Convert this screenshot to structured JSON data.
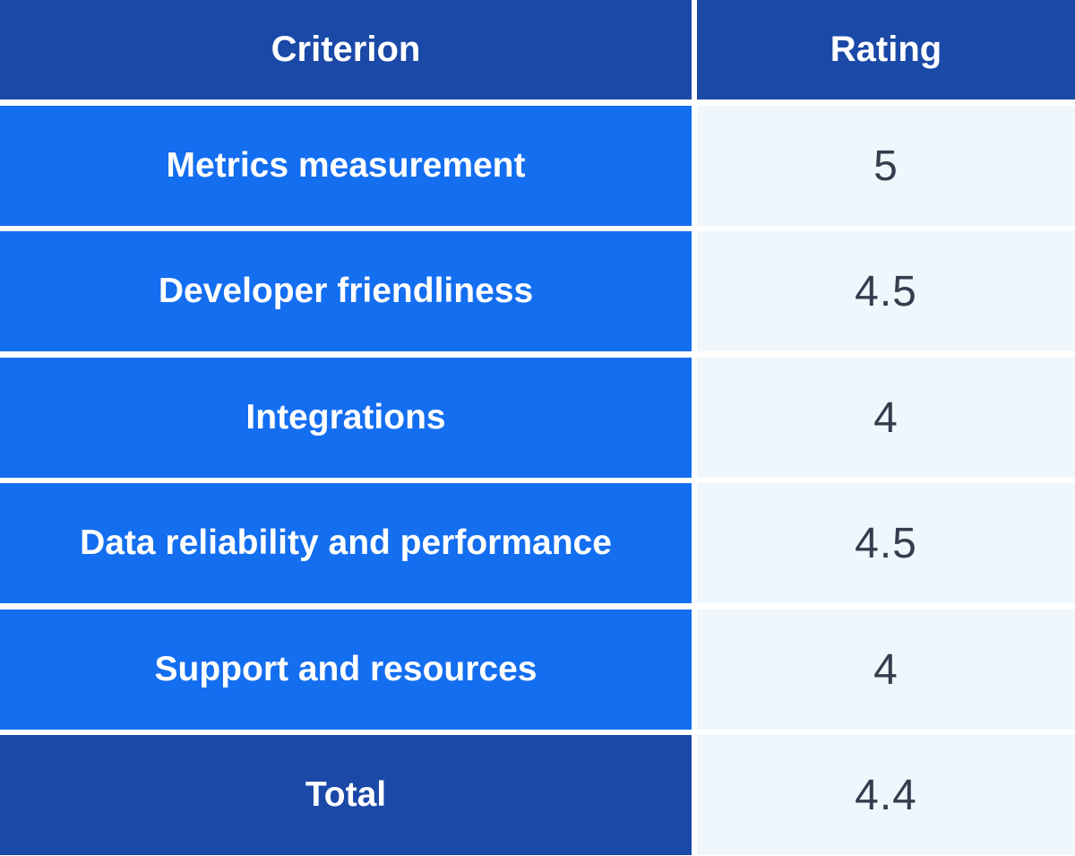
{
  "header": {
    "criterion_label": "Criterion",
    "rating_label": "Rating"
  },
  "rows": [
    {
      "criterion": "Metrics measurement",
      "rating": "5"
    },
    {
      "criterion": "Developer friendliness",
      "rating": "4.5"
    },
    {
      "criterion": "Integrations",
      "rating": "4"
    },
    {
      "criterion": "Data reliability and performance",
      "rating": "4.5"
    },
    {
      "criterion": "Support and resources",
      "rating": "4"
    },
    {
      "criterion": "Total",
      "rating": "4.4"
    }
  ],
  "colors": {
    "header_bg": "#1a49a8",
    "criterion_bg": "#146ef0",
    "total_bg": "#1a49a8",
    "rating_bg": "#eff7fd",
    "rating_text": "#333d4d"
  }
}
